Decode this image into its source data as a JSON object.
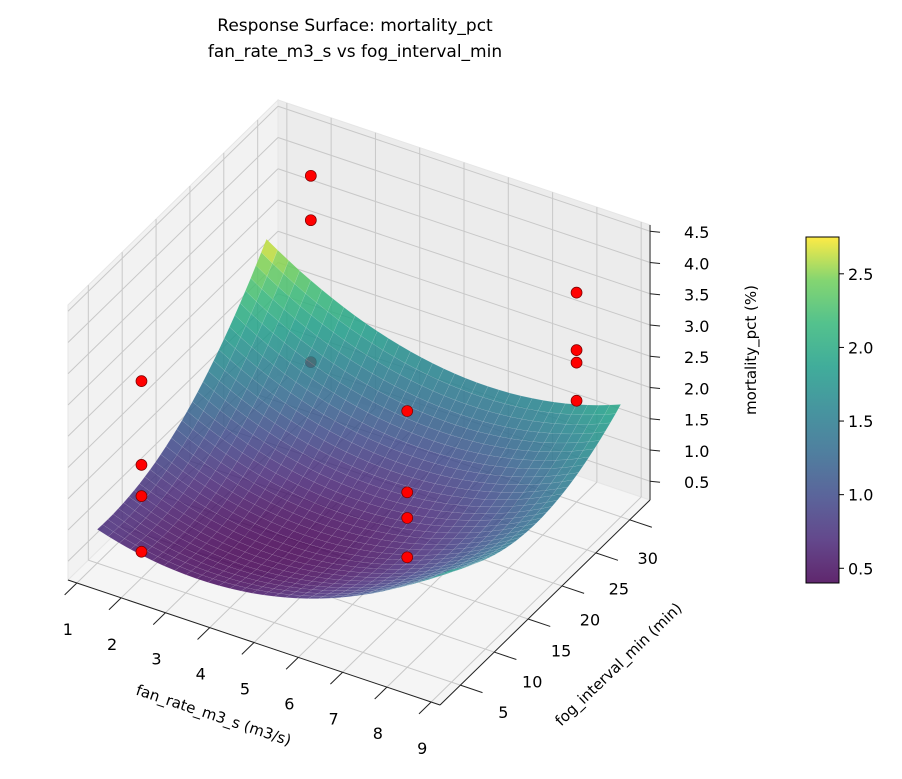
{
  "chart_data": {
    "type": "surface",
    "title": [
      "Response Surface: mortality_pct",
      "fan_rate_m3_s vs fog_interval_min"
    ],
    "xlabel": "fan_rate_m3_s (m3/s)",
    "ylabel": "fog_interval_min (min)",
    "zlabel": "mortality_pct (%)",
    "xlim": [
      0.8,
      9.2
    ],
    "ylim": [
      2,
      33
    ],
    "zlim": [
      0.2,
      4.6
    ],
    "xticks": [
      "1",
      "2",
      "3",
      "4",
      "5",
      "6",
      "7",
      "8",
      "9"
    ],
    "yticks": [
      "5",
      "10",
      "15",
      "20",
      "25",
      "30"
    ],
    "zticks": [
      "0.5",
      "1.0",
      "1.5",
      "2.0",
      "2.5",
      "3.0",
      "3.5",
      "4.0",
      "4.5"
    ],
    "grid": true,
    "colormap": "viridis",
    "surface": {
      "x": [
        1,
        3,
        5,
        7,
        9
      ],
      "y": [
        5,
        11.25,
        17.5,
        23.75,
        30
      ],
      "z": [
        [
          0.74,
          0.81,
          1.16,
          1.81,
          2.74
        ],
        [
          0.49,
          0.43,
          0.66,
          1.18,
          1.99
        ],
        [
          0.62,
          0.44,
          0.54,
          0.94,
          1.62
        ],
        [
          1.12,
          0.81,
          0.79,
          1.06,
          1.62
        ],
        [
          2.0,
          1.57,
          1.42,
          1.57,
          2.0
        ]
      ]
    },
    "points": {
      "color": "#ff0000",
      "data": [
        [
          2,
          5,
          3.35
        ],
        [
          2,
          5,
          2.01
        ],
        [
          2,
          5,
          1.51
        ],
        [
          2,
          5,
          0.62
        ],
        [
          2,
          30,
          3.99
        ],
        [
          2,
          30,
          3.28
        ],
        [
          2,
          30,
          1.01
        ],
        [
          8,
          5,
          4.3
        ],
        [
          8,
          5,
          3.0
        ],
        [
          8,
          5,
          2.59
        ],
        [
          8,
          5,
          1.96
        ],
        [
          8,
          30,
          3.55
        ],
        [
          8,
          30,
          2.63
        ],
        [
          8,
          30,
          2.43
        ],
        [
          8,
          30,
          1.82
        ]
      ]
    },
    "colorbar": {
      "range": [
        0.4,
        2.75
      ],
      "ticks": [
        "0.5",
        "1.0",
        "1.5",
        "2.0",
        "2.5"
      ]
    }
  }
}
